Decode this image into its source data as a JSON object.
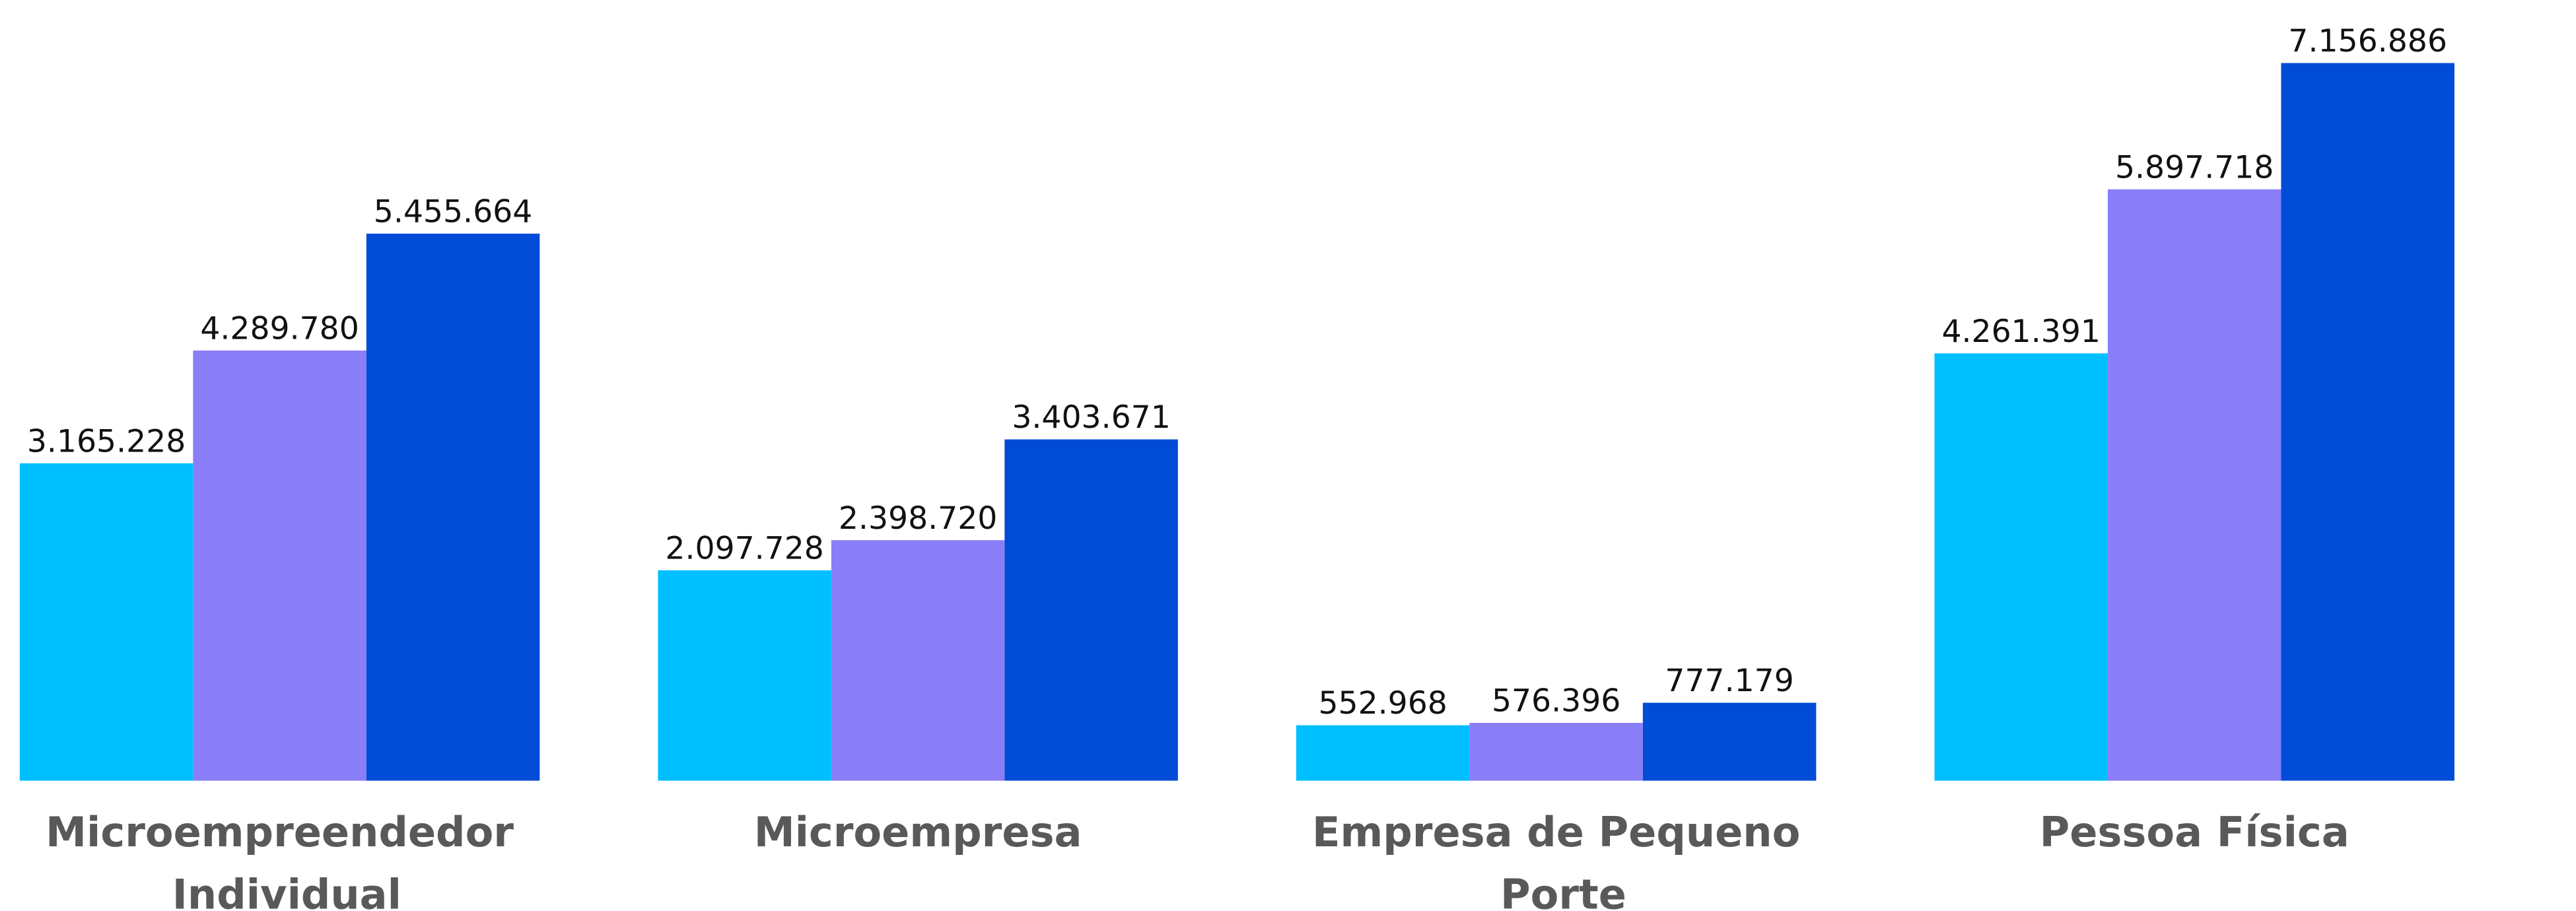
{
  "chart_data": {
    "type": "bar",
    "categories": [
      "Microempreendedor Individual",
      "Microempresa",
      "Empresa de Pequeno Porte",
      "Pessoa Física"
    ],
    "series": [
      {
        "color": "#00bfff",
        "values": [
          3165228,
          2097728,
          552968,
          4261391
        ],
        "value_labels": [
          "3.165.228",
          "2.097.728",
          "552.968",
          "4.261.391"
        ]
      },
      {
        "color": "#8a7ef8",
        "values": [
          4289780,
          2398720,
          576396,
          5897718
        ],
        "value_labels": [
          "4.289.780",
          "2.398.720",
          "576.396",
          "5.897.718"
        ]
      },
      {
        "color": "#004cd6",
        "values": [
          5455664,
          3403671,
          777179,
          7156886
        ],
        "value_labels": [
          "5.455.664",
          "3.403.671",
          "777.179",
          "7.156.886"
        ]
      }
    ],
    "ylim": [
      0,
      7780000
    ]
  }
}
